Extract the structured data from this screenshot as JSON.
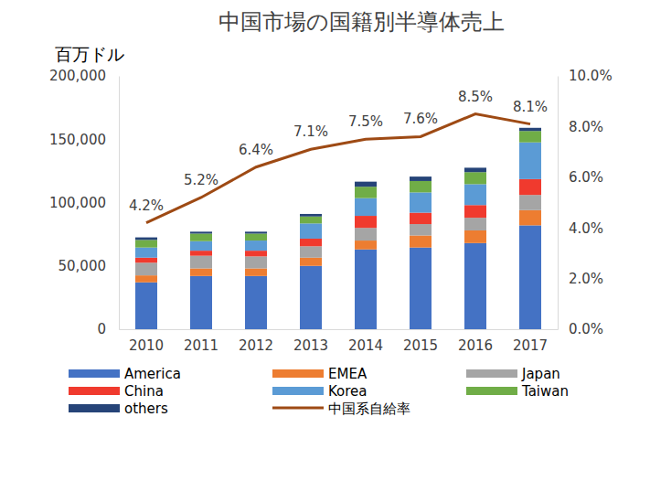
{
  "chart_data": {
    "type": "bar",
    "title": "中国市場の国籍別半導体売上",
    "y_label": "百万ドル",
    "stacked": true,
    "grid": false,
    "legend": "bottom",
    "categories": [
      "2010",
      "2011",
      "2012",
      "2013",
      "2014",
      "2015",
      "2016",
      "2017"
    ],
    "ylim": [
      0,
      200000
    ],
    "yticks": [
      0,
      {
        "value": 50000,
        "label": "50,000"
      },
      {
        "value": 100000,
        "label": "100,000"
      },
      {
        "value": 150000,
        "label": "150,000"
      },
      {
        "value": 200000,
        "label": "200,000"
      }
    ],
    "y2lim": [
      0,
      10
    ],
    "y2ticks": [
      {
        "value": 0,
        "label": "0.0%"
      },
      {
        "value": 2,
        "label": "2.0%"
      },
      {
        "value": 4,
        "label": "4.0%"
      },
      {
        "value": 6,
        "label": "6.0%"
      },
      {
        "value": 8,
        "label": "8.0%"
      },
      {
        "value": 10,
        "label": "10.0%"
      }
    ],
    "series": [
      {
        "name": "America",
        "color": "#4472c4",
        "values": [
          37000,
          42000,
          42000,
          50000,
          63000,
          64500,
          68000,
          82000
        ]
      },
      {
        "name": "EMEA",
        "color": "#ed7d31",
        "values": [
          5500,
          6000,
          6000,
          6500,
          7000,
          9500,
          10000,
          12000
        ]
      },
      {
        "name": "Japan",
        "color": "#a5a5a5",
        "values": [
          10000,
          10000,
          9500,
          9000,
          10000,
          9000,
          10000,
          12000
        ]
      },
      {
        "name": "China",
        "color": "#f03a2e",
        "values": [
          4000,
          4000,
          4500,
          6000,
          9500,
          9000,
          10000,
          12500
        ]
      },
      {
        "name": "Korea",
        "color": "#5b9bd5",
        "values": [
          8000,
          7500,
          8000,
          12000,
          14000,
          16000,
          16500,
          29000
        ]
      },
      {
        "name": "Taiwan",
        "color": "#70ad47",
        "values": [
          6000,
          6000,
          5500,
          5500,
          9000,
          9000,
          9500,
          9000
        ]
      },
      {
        "name": "others",
        "color": "#264478",
        "values": [
          2000,
          1500,
          1500,
          2000,
          4000,
          3500,
          3500,
          2500
        ]
      },
      {
        "name": "中国系自給率",
        "color": "#9e4a14",
        "type": "line",
        "axis": "y2",
        "data_labels": true,
        "values": [
          4.2,
          5.2,
          6.4,
          7.1,
          7.5,
          7.6,
          8.5,
          8.1
        ],
        "value_labels": [
          "4.2%",
          "5.2%",
          "6.4%",
          "7.1%",
          "7.5%",
          "7.6%",
          "8.5%",
          "8.1%"
        ]
      }
    ]
  }
}
